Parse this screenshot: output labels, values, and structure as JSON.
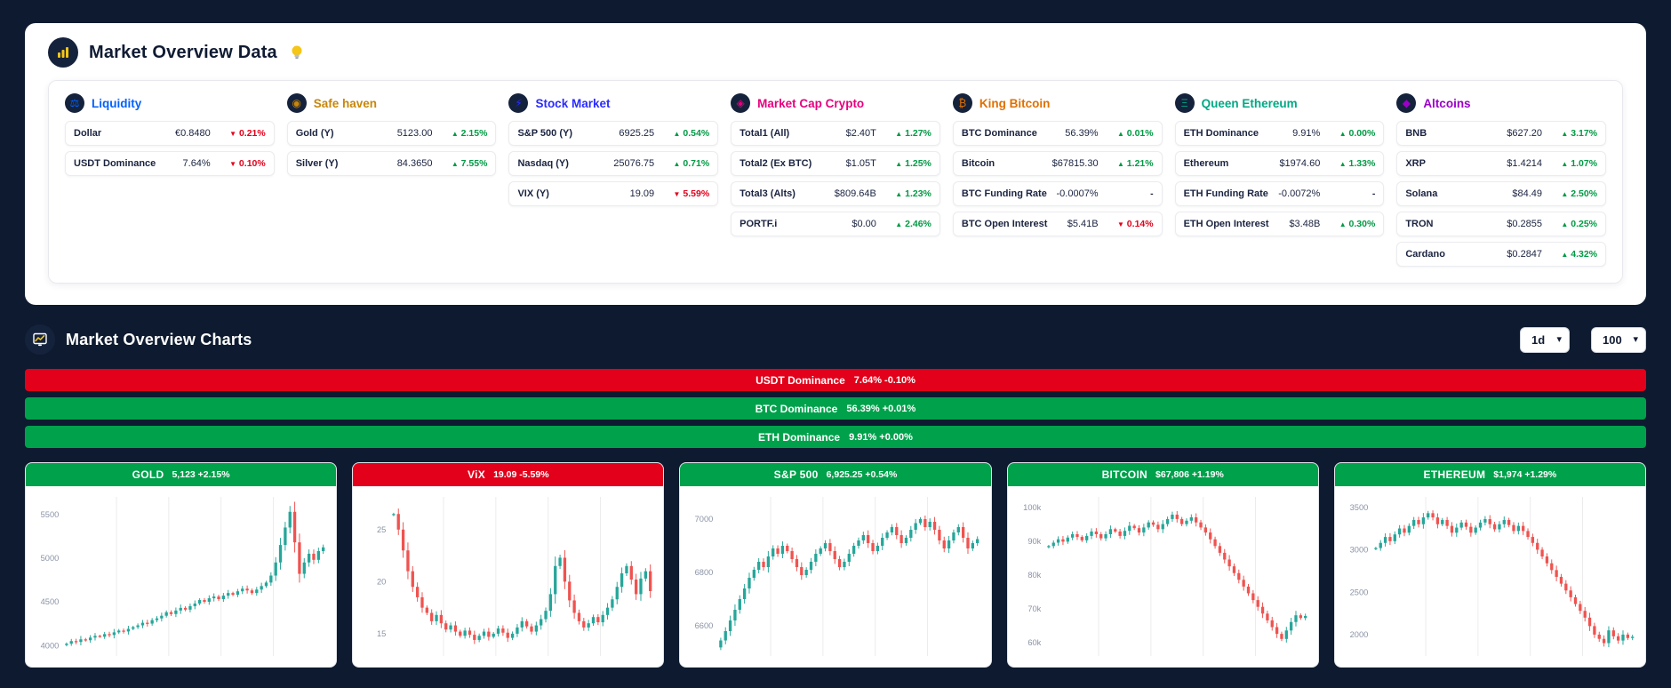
{
  "page": {
    "title": "Market Overview Data",
    "charts_title": "Market Overview Charts"
  },
  "controls": {
    "timeframe": "1d",
    "limit": "100"
  },
  "colors": {
    "up": "#009a44",
    "down": "#e2001a",
    "banner_green": "#00a14b",
    "banner_red": "#e2001a",
    "candle_up": "#26a69a",
    "candle_down": "#ef5350",
    "grid": "#ebebeb",
    "tick_text": "#8a93a6"
  },
  "columns": [
    {
      "title": "Liquidity",
      "color": "#0062ff",
      "icon": "scales-icon",
      "glyph": "⚖",
      "rows": [
        {
          "label": "Dollar",
          "value": "€0.8480",
          "change": "0.21%",
          "dir": "down"
        },
        {
          "label": "USDT Dominance",
          "value": "7.64%",
          "change": "0.10%",
          "dir": "down"
        }
      ]
    },
    {
      "title": "Safe haven",
      "color": "#c8860a",
      "icon": "medal-icon",
      "glyph": "◉",
      "rows": [
        {
          "label": "Gold (Y)",
          "value": "5123.00",
          "change": "2.15%",
          "dir": "up"
        },
        {
          "label": "Silver (Y)",
          "value": "84.3650",
          "change": "7.55%",
          "dir": "up"
        }
      ]
    },
    {
      "title": "Stock Market",
      "color": "#2b2bff",
      "icon": "lightning-icon",
      "glyph": "⚡",
      "rows": [
        {
          "label": "S&P 500 (Y)",
          "value": "6925.25",
          "change": "0.54%",
          "dir": "up"
        },
        {
          "label": "Nasdaq (Y)",
          "value": "25076.75",
          "change": "0.71%",
          "dir": "up"
        },
        {
          "label": "VIX (Y)",
          "value": "19.09",
          "change": "5.59%",
          "dir": "down"
        }
      ]
    },
    {
      "title": "Market Cap Crypto",
      "color": "#e6007e",
      "icon": "coins-icon",
      "glyph": "◈",
      "rows": [
        {
          "label": "Total1 (All)",
          "value": "$2.40T",
          "change": "1.27%",
          "dir": "up"
        },
        {
          "label": "Total2 (Ex BTC)",
          "value": "$1.05T",
          "change": "1.25%",
          "dir": "up"
        },
        {
          "label": "Total3 (Alts)",
          "value": "$809.64B",
          "change": "1.23%",
          "dir": "up"
        },
        {
          "label": "PORTF.i",
          "value": "$0.00",
          "change": "2.46%",
          "dir": "up"
        }
      ]
    },
    {
      "title": "King Bitcoin",
      "color": "#e07000",
      "icon": "bitcoin-icon",
      "glyph": "₿",
      "rows": [
        {
          "label": "BTC Dominance",
          "value": "56.39%",
          "change": "0.01%",
          "dir": "up"
        },
        {
          "label": "Bitcoin",
          "value": "$67815.30",
          "change": "1.21%",
          "dir": "up"
        },
        {
          "label": "BTC Funding Rate",
          "value": "-0.0007%",
          "change": "-",
          "dir": "flat"
        },
        {
          "label": "BTC Open Interest",
          "value": "$5.41B",
          "change": "0.14%",
          "dir": "down"
        }
      ]
    },
    {
      "title": "Queen Ethereum",
      "color": "#00a884",
      "icon": "ethereum-icon",
      "glyph": "Ξ",
      "rows": [
        {
          "label": "ETH Dominance",
          "value": "9.91%",
          "change": "0.00%",
          "dir": "up"
        },
        {
          "label": "Ethereum",
          "value": "$1974.60",
          "change": "1.33%",
          "dir": "up"
        },
        {
          "label": "ETH Funding Rate",
          "value": "-0.0072%",
          "change": "-",
          "dir": "flat"
        },
        {
          "label": "ETH Open Interest",
          "value": "$3.48B",
          "change": "0.30%",
          "dir": "up"
        }
      ]
    },
    {
      "title": "Altcoins",
      "color": "#9b00c8",
      "icon": "coin-icon",
      "glyph": "◆",
      "rows": [
        {
          "label": "BNB",
          "value": "$627.20",
          "change": "3.17%",
          "dir": "up"
        },
        {
          "label": "XRP",
          "value": "$1.4214",
          "change": "1.07%",
          "dir": "up"
        },
        {
          "label": "Solana",
          "value": "$84.49",
          "change": "2.50%",
          "dir": "up"
        },
        {
          "label": "TRON",
          "value": "$0.2855",
          "change": "0.25%",
          "dir": "up"
        },
        {
          "label": "Cardano",
          "value": "$0.2847",
          "change": "4.32%",
          "dir": "up"
        }
      ]
    }
  ],
  "banners": [
    {
      "label": "USDT Dominance",
      "value": "7.64% -0.10%",
      "tone": "red"
    },
    {
      "label": "BTC Dominance",
      "value": "56.39% +0.01%",
      "tone": "green"
    },
    {
      "label": "ETH Dominance",
      "value": "9.91% +0.00%",
      "tone": "green"
    }
  ],
  "chart_data": [
    {
      "type": "candlestick",
      "name": "GOLD",
      "header_value": "5,123 +2.15%",
      "tone": "green",
      "ylim": [
        3920,
        5660
      ],
      "ytick_values": [
        4000,
        4500,
        5000,
        5500
      ],
      "ytick_labels": [
        "4000",
        "4500",
        "5000",
        "5500"
      ],
      "values": [
        4020,
        4050,
        4040,
        4070,
        4060,
        4090,
        4110,
        4100,
        4130,
        4120,
        4150,
        4170,
        4160,
        4190,
        4210,
        4230,
        4260,
        4250,
        4290,
        4310,
        4340,
        4380,
        4360,
        4400,
        4430,
        4410,
        4450,
        4480,
        4520,
        4500,
        4540,
        4560,
        4530,
        4570,
        4600,
        4580,
        4620,
        4650,
        4630,
        4600,
        4640,
        4680,
        4720,
        4800,
        4950,
        5150,
        5350,
        5530,
        5180,
        4820,
        4950,
        5050,
        4980,
        5080,
        5123
      ]
    },
    {
      "type": "candlestick",
      "name": "ViX",
      "header_value": "19.09 -5.59%",
      "tone": "red",
      "ylim": [
        13.2,
        27.8
      ],
      "ytick_values": [
        15,
        20,
        25
      ],
      "ytick_labels": [
        "15",
        "20",
        "25"
      ],
      "values": [
        26.5,
        25.0,
        23.0,
        21.0,
        19.5,
        18.5,
        17.5,
        17.0,
        16.2,
        16.8,
        16.0,
        15.4,
        15.8,
        15.2,
        14.8,
        15.3,
        14.9,
        14.4,
        14.8,
        15.2,
        14.7,
        15.0,
        15.5,
        15.1,
        14.6,
        15.0,
        15.6,
        16.2,
        15.7,
        15.2,
        15.8,
        16.4,
        17.2,
        18.8,
        21.5,
        22.3,
        20.0,
        18.2,
        17.0,
        16.2,
        15.6,
        16.0,
        16.6,
        16.1,
        16.8,
        17.5,
        18.3,
        19.5,
        20.8,
        21.5,
        20.2,
        18.8,
        20.3,
        21.0,
        19.09
      ]
    },
    {
      "type": "candlestick",
      "name": "S&P 500",
      "header_value": "6,925.25 +0.54%",
      "tone": "green",
      "ylim": [
        6500,
        7070
      ],
      "ytick_values": [
        6600,
        6800,
        7000
      ],
      "ytick_labels": [
        "6600",
        "6800",
        "7000"
      ],
      "values": [
        6545,
        6580,
        6620,
        6660,
        6700,
        6740,
        6780,
        6810,
        6840,
        6820,
        6860,
        6890,
        6870,
        6900,
        6880,
        6850,
        6820,
        6790,
        6810,
        6840,
        6870,
        6890,
        6910,
        6880,
        6850,
        6820,
        6840,
        6870,
        6900,
        6920,
        6940,
        6910,
        6880,
        6900,
        6930,
        6950,
        6970,
        6940,
        6910,
        6930,
        6960,
        6985,
        7000,
        6970,
        6990,
        6960,
        6920,
        6890,
        6920,
        6950,
        6970,
        6930,
        6890,
        6910,
        6925
      ]
    },
    {
      "type": "candlestick",
      "name": "BITCOIN",
      "header_value": "$67,806 +1.19%",
      "tone": "green",
      "ylim": [
        57000,
        102000
      ],
      "ytick_values": [
        60000,
        70000,
        80000,
        90000,
        100000
      ],
      "ytick_labels": [
        "60k",
        "70k",
        "80k",
        "90k",
        "100k"
      ],
      "values": [
        88500,
        89500,
        90500,
        89800,
        91000,
        92000,
        91200,
        90200,
        91500,
        92800,
        92000,
        90800,
        92000,
        93500,
        92800,
        91500,
        93000,
        94500,
        93800,
        92500,
        94000,
        95500,
        94800,
        93500,
        95000,
        96500,
        97800,
        96500,
        95000,
        96000,
        97000,
        95500,
        94000,
        92500,
        90500,
        88500,
        86500,
        84500,
        82500,
        80500,
        78500,
        76500,
        74500,
        72500,
        70500,
        68500,
        66500,
        64500,
        62500,
        61000,
        63500,
        66000,
        68000,
        67200,
        67806
      ]
    },
    {
      "type": "candlestick",
      "name": "ETHEREUM",
      "header_value": "$1,974 +1.29%",
      "tone": "green",
      "ylim": [
        1790,
        3580
      ],
      "ytick_values": [
        2000,
        2500,
        3000,
        3500
      ],
      "ytick_labels": [
        "2000",
        "2500",
        "3000",
        "3500"
      ],
      "values": [
        3020,
        3080,
        3150,
        3100,
        3180,
        3250,
        3200,
        3280,
        3350,
        3300,
        3380,
        3430,
        3380,
        3300,
        3350,
        3280,
        3200,
        3260,
        3320,
        3270,
        3200,
        3260,
        3320,
        3360,
        3300,
        3240,
        3300,
        3350,
        3290,
        3220,
        3280,
        3220,
        3150,
        3080,
        3000,
        2920,
        2840,
        2760,
        2680,
        2600,
        2520,
        2440,
        2360,
        2280,
        2200,
        2100,
        2000,
        1950,
        1900,
        2050,
        1980,
        1930,
        2000,
        1960,
        1974
      ]
    }
  ]
}
